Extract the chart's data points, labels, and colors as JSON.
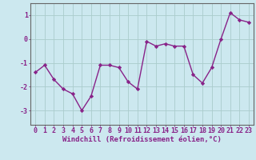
{
  "x": [
    0,
    1,
    2,
    3,
    4,
    5,
    6,
    7,
    8,
    9,
    10,
    11,
    12,
    13,
    14,
    15,
    16,
    17,
    18,
    19,
    20,
    21,
    22,
    23
  ],
  "y": [
    -1.4,
    -1.1,
    -1.7,
    -2.1,
    -2.3,
    -3.0,
    -2.4,
    -1.1,
    -1.1,
    -1.2,
    -1.8,
    -2.1,
    -0.1,
    -0.3,
    -0.2,
    -0.3,
    -0.3,
    -1.5,
    -1.85,
    -1.2,
    0.0,
    1.1,
    0.8,
    0.7
  ],
  "line_color": "#882288",
  "marker": "D",
  "markersize": 2.2,
  "linewidth": 1.0,
  "bg_color": "#cce8ef",
  "grid_color": "#aacccc",
  "xlabel": "Windchill (Refroidissement éolien,°C)",
  "xlabel_fontsize": 6.5,
  "xtick_labels": [
    "0",
    "1",
    "2",
    "3",
    "4",
    "5",
    "6",
    "7",
    "8",
    "9",
    "10",
    "11",
    "12",
    "13",
    "14",
    "15",
    "16",
    "17",
    "18",
    "19",
    "20",
    "21",
    "22",
    "23"
  ],
  "ytick_values": [
    -3,
    -2,
    -1,
    0,
    1
  ],
  "xlim": [
    -0.5,
    23.5
  ],
  "ylim": [
    -3.6,
    1.5
  ],
  "tick_fontsize": 6.0
}
